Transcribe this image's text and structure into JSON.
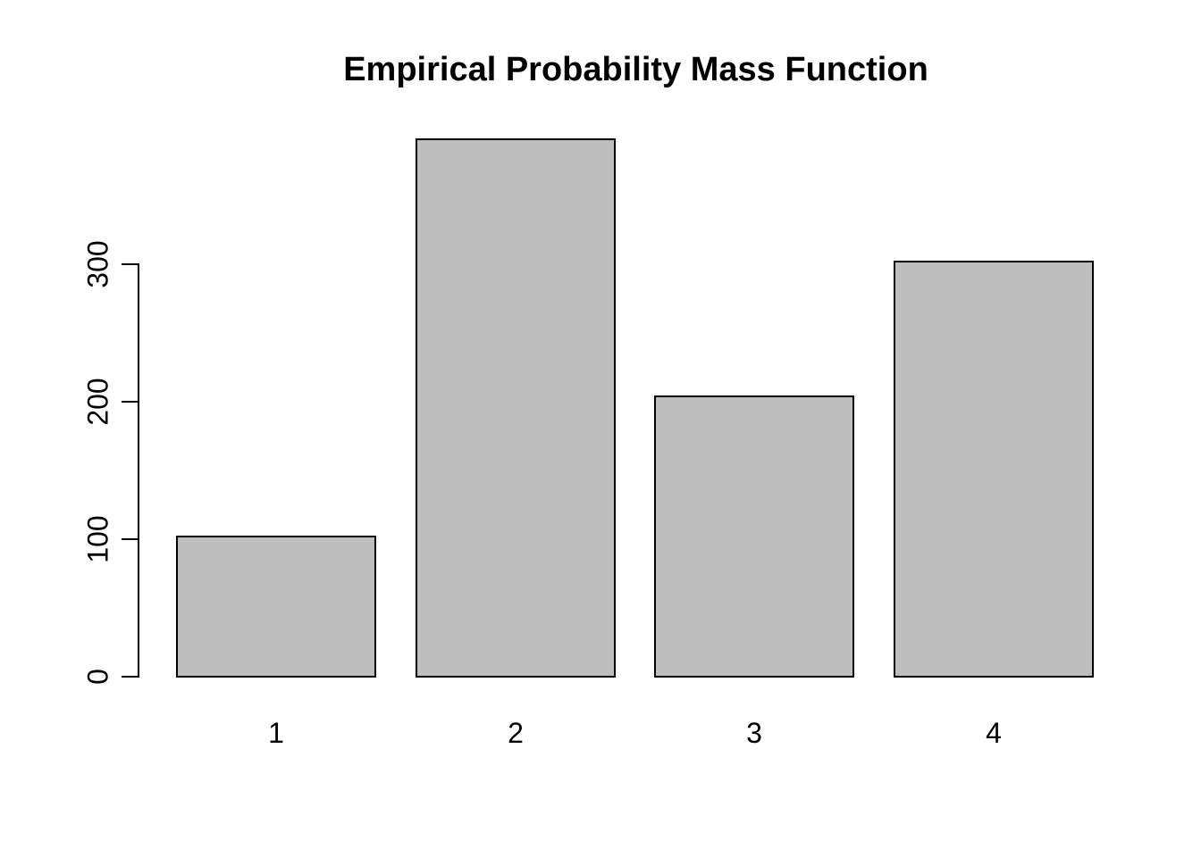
{
  "chart_data": {
    "type": "bar",
    "title": "Empirical Probability Mass Function",
    "categories": [
      "1",
      "2",
      "3",
      "4"
    ],
    "values": [
      102,
      391,
      204,
      302
    ],
    "xlabel": "",
    "ylabel": "",
    "yticks": [
      0,
      100,
      200,
      300
    ],
    "ylim": [
      0,
      395
    ],
    "grid": false,
    "legend": false,
    "bar_fill_color": "#bebebe",
    "bar_border_color": "#000000",
    "axis_color": "#000000",
    "text_color": "#000000",
    "background_color": "#ffffff"
  }
}
